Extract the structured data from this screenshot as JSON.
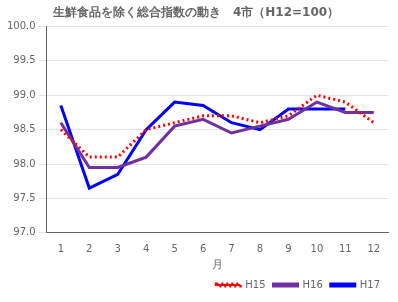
{
  "chart_data": {
    "type": "line",
    "title": "生鮮食品を除く総合指数の動き　4市（H12=100）",
    "xlabel": "月",
    "x": [
      1,
      2,
      3,
      4,
      5,
      6,
      7,
      8,
      9,
      10,
      11,
      12
    ],
    "series": [
      {
        "name": "H15",
        "color": "#ff0000",
        "line_style": "dotted",
        "values": [
          98.5,
          98.1,
          98.1,
          98.5,
          98.6,
          98.7,
          98.7,
          98.6,
          98.7,
          99.0,
          98.9,
          98.6
        ]
      },
      {
        "name": "H16",
        "color": "#7030a0",
        "line_style": "solid",
        "values": [
          98.6,
          97.95,
          97.95,
          98.1,
          98.55,
          98.65,
          98.45,
          98.55,
          98.65,
          98.9,
          98.75,
          98.75
        ]
      },
      {
        "name": "H17",
        "color": "#0000ff",
        "line_style": "solid",
        "values": [
          98.85,
          97.65,
          97.85,
          98.5,
          98.9,
          98.85,
          98.6,
          98.5,
          98.8,
          98.8,
          98.8,
          null
        ]
      }
    ],
    "xlim": [
      0.5,
      12.5
    ],
    "xticks": [
      1,
      2,
      3,
      4,
      5,
      6,
      7,
      8,
      9,
      10,
      11,
      12
    ],
    "ylim": [
      97.0,
      100.0
    ],
    "yticks": [
      {
        "value": 97,
        "label": "97.0"
      },
      97.5,
      {
        "value": 98,
        "label": "98.0"
      },
      98.5,
      {
        "value": 99,
        "label": "99.0"
      },
      99.5,
      {
        "value": 100,
        "label": "100.0"
      }
    ],
    "grid": "y",
    "legend": "lower right"
  }
}
